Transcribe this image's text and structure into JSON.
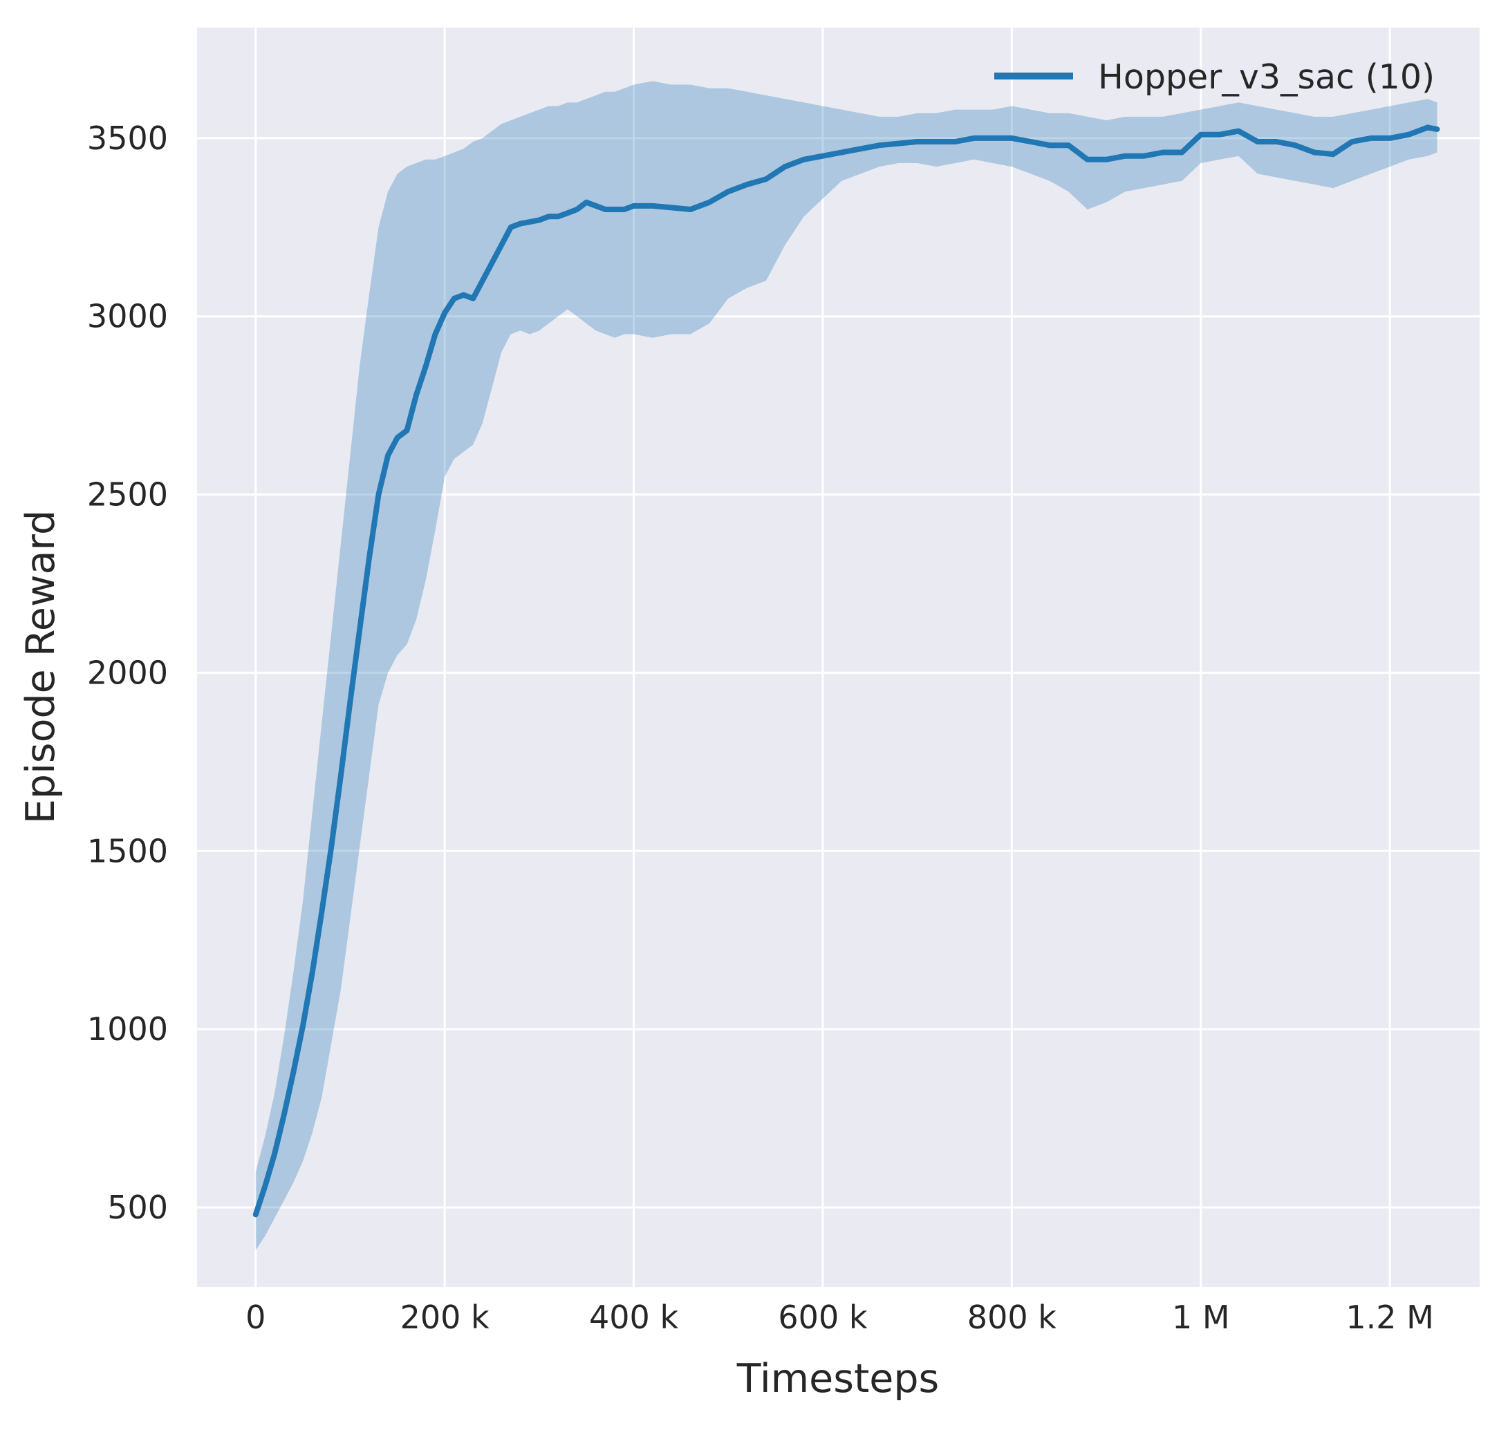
{
  "figure": {
    "background": "#ffffff",
    "plot_background": "#eaeaf2",
    "grid_color": "#ffffff",
    "text_color": "#262626"
  },
  "chart_data": {
    "type": "line",
    "title": "",
    "xlabel": "Timesteps",
    "ylabel": "Episode Reward",
    "xlim": [
      -62000,
      1295000
    ],
    "ylim": [
      277,
      3810
    ],
    "grid": true,
    "legend_position": "upper right",
    "x_ticks": [
      {
        "value": 0,
        "label": "0"
      },
      {
        "value": 200000,
        "label": "200 k"
      },
      {
        "value": 400000,
        "label": "400 k"
      },
      {
        "value": 600000,
        "label": "600 k"
      },
      {
        "value": 800000,
        "label": "800 k"
      },
      {
        "value": 1000000,
        "label": "1 M"
      },
      {
        "value": 1200000,
        "label": "1.2 M"
      }
    ],
    "y_ticks": [
      {
        "value": 500,
        "label": "500"
      },
      {
        "value": 1000,
        "label": "1000"
      },
      {
        "value": 1500,
        "label": "1500"
      },
      {
        "value": 2000,
        "label": "2000"
      },
      {
        "value": 2500,
        "label": "2500"
      },
      {
        "value": 3000,
        "label": "3000"
      },
      {
        "value": 3500,
        "label": "3500"
      }
    ],
    "series": [
      {
        "name": "Hopper_v3_sac (10)",
        "color": "#2077b4",
        "band_fill": "rgba(31,119,180,0.3)",
        "x": [
          0,
          10000,
          20000,
          30000,
          40000,
          50000,
          60000,
          70000,
          80000,
          90000,
          100000,
          110000,
          120000,
          130000,
          140000,
          150000,
          160000,
          170000,
          180000,
          190000,
          200000,
          210000,
          220000,
          230000,
          240000,
          250000,
          260000,
          270000,
          280000,
          290000,
          300000,
          310000,
          320000,
          330000,
          340000,
          350000,
          360000,
          370000,
          380000,
          390000,
          400000,
          420000,
          440000,
          460000,
          480000,
          500000,
          520000,
          540000,
          560000,
          580000,
          600000,
          620000,
          640000,
          660000,
          680000,
          700000,
          720000,
          740000,
          760000,
          780000,
          800000,
          820000,
          840000,
          860000,
          880000,
          900000,
          920000,
          940000,
          960000,
          980000,
          1000000,
          1020000,
          1040000,
          1060000,
          1080000,
          1100000,
          1120000,
          1140000,
          1160000,
          1180000,
          1200000,
          1220000,
          1240000,
          1250000
        ],
        "mean": [
          480,
          560,
          650,
          760,
          880,
          1010,
          1160,
          1330,
          1510,
          1710,
          1920,
          2120,
          2320,
          2500,
          2610,
          2660,
          2680,
          2780,
          2860,
          2950,
          3010,
          3050,
          3060,
          3050,
          3100,
          3150,
          3200,
          3250,
          3260,
          3265,
          3270,
          3280,
          3280,
          3290,
          3300,
          3320,
          3310,
          3300,
          3300,
          3300,
          3310,
          3310,
          3305,
          3300,
          3320,
          3350,
          3370,
          3385,
          3420,
          3440,
          3450,
          3460,
          3470,
          3480,
          3485,
          3490,
          3490,
          3490,
          3500,
          3500,
          3500,
          3490,
          3480,
          3480,
          3440,
          3440,
          3450,
          3450,
          3460,
          3460,
          3510,
          3510,
          3520,
          3490,
          3490,
          3480,
          3460,
          3455,
          3490,
          3500,
          3500,
          3510,
          3530,
          3525
        ],
        "lower": [
          380,
          420,
          470,
          520,
          570,
          630,
          710,
          810,
          960,
          1110,
          1310,
          1510,
          1710,
          1910,
          2000,
          2050,
          2080,
          2150,
          2260,
          2400,
          2550,
          2600,
          2620,
          2640,
          2700,
          2800,
          2900,
          2950,
          2960,
          2950,
          2960,
          2980,
          3000,
          3020,
          3000,
          2980,
          2960,
          2950,
          2940,
          2950,
          2950,
          2940,
          2950,
          2950,
          2980,
          3050,
          3080,
          3100,
          3200,
          3280,
          3330,
          3380,
          3400,
          3420,
          3430,
          3430,
          3420,
          3430,
          3440,
          3430,
          3420,
          3400,
          3380,
          3350,
          3300,
          3320,
          3350,
          3360,
          3370,
          3380,
          3430,
          3440,
          3450,
          3400,
          3390,
          3380,
          3370,
          3360,
          3380,
          3400,
          3420,
          3440,
          3450,
          3460
        ],
        "upper": [
          600,
          700,
          820,
          980,
          1160,
          1360,
          1610,
          1860,
          2110,
          2360,
          2610,
          2860,
          3060,
          3250,
          3350,
          3400,
          3420,
          3430,
          3440,
          3440,
          3450,
          3460,
          3470,
          3490,
          3500,
          3520,
          3540,
          3550,
          3560,
          3570,
          3580,
          3590,
          3590,
          3600,
          3600,
          3610,
          3620,
          3630,
          3630,
          3640,
          3650,
          3660,
          3650,
          3650,
          3640,
          3640,
          3630,
          3620,
          3610,
          3600,
          3590,
          3580,
          3570,
          3560,
          3560,
          3570,
          3570,
          3580,
          3580,
          3580,
          3590,
          3580,
          3570,
          3570,
          3560,
          3550,
          3560,
          3560,
          3560,
          3570,
          3580,
          3590,
          3600,
          3590,
          3580,
          3570,
          3560,
          3560,
          3570,
          3580,
          3590,
          3600,
          3610,
          3600
        ]
      }
    ]
  }
}
